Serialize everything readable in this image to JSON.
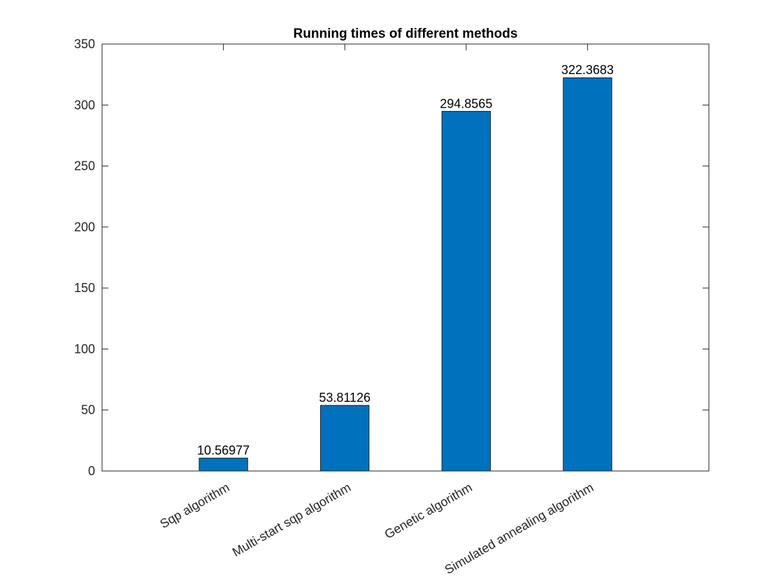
{
  "chart_data": {
    "type": "bar",
    "title": "Running times of different methods",
    "xlabel": "",
    "ylabel": "",
    "categories": [
      "Sqp algorithm",
      "Multi-start sqp algorithm",
      "Genetic algorithm",
      "Simulated annealing algorithm"
    ],
    "values": [
      10.56977,
      53.81126,
      294.8565,
      322.3683
    ],
    "data_labels": [
      "10.56977",
      "53.81126",
      "294.8565",
      "322.3683"
    ],
    "ylim": [
      0,
      350
    ],
    "yticks": [
      0,
      50,
      100,
      150,
      200,
      250,
      300,
      350
    ],
    "bar_color": "#0072BD",
    "grid": false,
    "box": true
  }
}
